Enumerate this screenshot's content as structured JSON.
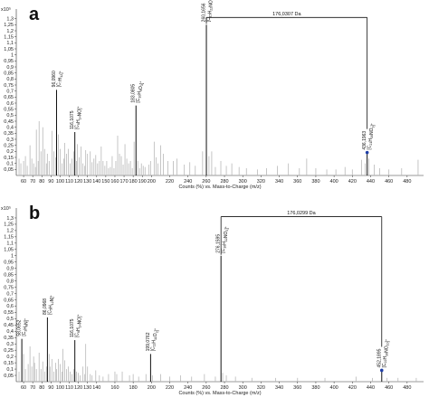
{
  "chart_data": [
    {
      "type": "bar",
      "panel_label": "a",
      "scale_label": "x10⁵",
      "xlabel": "Counts (%) vs. Mass-to-Charge (m/z)",
      "xlim": [
        52,
        498
      ],
      "ylim": [
        0,
        1.35
      ],
      "x_ticks": [
        60,
        70,
        80,
        90,
        100,
        110,
        120,
        130,
        140,
        150,
        160,
        170,
        180,
        190,
        200,
        220,
        240,
        260,
        280,
        300,
        320,
        340,
        360,
        380,
        400,
        420,
        440,
        460,
        480
      ],
      "y_ticks": [
        0.05,
        0.1,
        0.15,
        0.2,
        0.25,
        0.3,
        0.35,
        0.4,
        0.45,
        0.5,
        0.55,
        0.6,
        0.65,
        0.7,
        0.75,
        0.8,
        0.85,
        0.9,
        0.95,
        1,
        1.05,
        1.1,
        1.15,
        1.2,
        1.25,
        1.3
      ],
      "y_tick_labels": [
        "0,05",
        "0,1",
        "0,15",
        "0,2",
        "0,25",
        "0,3",
        "0,35",
        "0,4",
        "0,45",
        "0,5",
        "0,55",
        "0,6",
        "0,65",
        "0,7",
        "0,75",
        "0,8",
        "0,85",
        "0,9",
        "0,95",
        "1",
        "1,05",
        "1,1",
        "1,15",
        "1,2",
        "1,25",
        "1,3"
      ],
      "x_axis_right_extent": 498,
      "labeled_peaks": [
        {
          "mz": 96.096,
          "value": 0.71,
          "label": "96,0960",
          "formula": "[C7H12]+"
        },
        {
          "mz": 116.1075,
          "value": 0.36,
          "label": "116,1075",
          "formula": "[C6H14NO]+"
        },
        {
          "mz": 183.0805,
          "value": 0.58,
          "label": "183,0805",
          "formula": "[C10H9O3]+"
        },
        {
          "mz": 260.1656,
          "value": 1.25,
          "label": "260,1656",
          "formula": "[C15H22NO3]+"
        },
        {
          "mz": 436.1963,
          "value": 0.19,
          "label": "436,1963",
          "formula": "[C21H30NO9]+",
          "marker": true
        }
      ],
      "neutral_loss": {
        "from": 260.1656,
        "to": 436.1963,
        "label": "176,0307 Da",
        "y": 1.31
      },
      "minor_peaks": [
        {
          "x": 55,
          "y": 0.14
        },
        {
          "x": 57,
          "y": 0.1
        },
        {
          "x": 60,
          "y": 0.12
        },
        {
          "x": 62,
          "y": 0.16
        },
        {
          "x": 64,
          "y": 0.08
        },
        {
          "x": 67,
          "y": 0.25
        },
        {
          "x": 69,
          "y": 0.14
        },
        {
          "x": 71,
          "y": 0.1
        },
        {
          "x": 73,
          "y": 0.07
        },
        {
          "x": 74,
          "y": 0.38
        },
        {
          "x": 76,
          "y": 0.12
        },
        {
          "x": 77,
          "y": 0.45
        },
        {
          "x": 79,
          "y": 0.2
        },
        {
          "x": 81,
          "y": 0.4
        },
        {
          "x": 83,
          "y": 0.22
        },
        {
          "x": 85,
          "y": 0.1
        },
        {
          "x": 86,
          "y": 0.18
        },
        {
          "x": 88,
          "y": 0.12
        },
        {
          "x": 91,
          "y": 0.37
        },
        {
          "x": 93,
          "y": 0.2
        },
        {
          "x": 95,
          "y": 0.15
        },
        {
          "x": 98,
          "y": 0.34
        },
        {
          "x": 100,
          "y": 0.22
        },
        {
          "x": 102,
          "y": 0.1
        },
        {
          "x": 104,
          "y": 0.14
        },
        {
          "x": 105,
          "y": 0.27
        },
        {
          "x": 107,
          "y": 0.18
        },
        {
          "x": 109,
          "y": 0.22
        },
        {
          "x": 111,
          "y": 0.1
        },
        {
          "x": 113,
          "y": 0.14
        },
        {
          "x": 115,
          "y": 0.2
        },
        {
          "x": 118,
          "y": 0.12
        },
        {
          "x": 119,
          "y": 0.26
        },
        {
          "x": 121,
          "y": 0.15
        },
        {
          "x": 123,
          "y": 0.24
        },
        {
          "x": 125,
          "y": 0.1
        },
        {
          "x": 127,
          "y": 0.08
        },
        {
          "x": 128,
          "y": 0.21
        },
        {
          "x": 130,
          "y": 0.18
        },
        {
          "x": 133,
          "y": 0.2
        },
        {
          "x": 135,
          "y": 0.11
        },
        {
          "x": 137,
          "y": 0.14
        },
        {
          "x": 139,
          "y": 0.17
        },
        {
          "x": 141,
          "y": 0.1
        },
        {
          "x": 143,
          "y": 0.12
        },
        {
          "x": 145,
          "y": 0.24
        },
        {
          "x": 147,
          "y": 0.12
        },
        {
          "x": 149,
          "y": 0.08
        },
        {
          "x": 151,
          "y": 0.12
        },
        {
          "x": 153,
          "y": 0.06
        },
        {
          "x": 155,
          "y": 0.07
        },
        {
          "x": 157,
          "y": 0.16
        },
        {
          "x": 159,
          "y": 0.06
        },
        {
          "x": 161,
          "y": 0.12
        },
        {
          "x": 163,
          "y": 0.33
        },
        {
          "x": 165,
          "y": 0.18
        },
        {
          "x": 167,
          "y": 0.16
        },
        {
          "x": 169,
          "y": 0.09
        },
        {
          "x": 171,
          "y": 0.26
        },
        {
          "x": 173,
          "y": 0.14
        },
        {
          "x": 175,
          "y": 0.1
        },
        {
          "x": 177,
          "y": 0.12
        },
        {
          "x": 179,
          "y": 0.06
        },
        {
          "x": 181,
          "y": 0.28
        },
        {
          "x": 185,
          "y": 0.12
        },
        {
          "x": 187,
          "y": 0.06
        },
        {
          "x": 189,
          "y": 0.1
        },
        {
          "x": 191,
          "y": 0.08
        },
        {
          "x": 193,
          "y": 0.07
        },
        {
          "x": 197,
          "y": 0.09
        },
        {
          "x": 199,
          "y": 0.12
        },
        {
          "x": 203,
          "y": 0.28
        },
        {
          "x": 205,
          "y": 0.15
        },
        {
          "x": 207,
          "y": 0.1
        },
        {
          "x": 210,
          "y": 0.25
        },
        {
          "x": 213,
          "y": 0.18
        },
        {
          "x": 218,
          "y": 0.12
        },
        {
          "x": 224,
          "y": 0.12
        },
        {
          "x": 228,
          "y": 0.14
        },
        {
          "x": 236,
          "y": 0.09
        },
        {
          "x": 242,
          "y": 0.11
        },
        {
          "x": 248,
          "y": 0.08
        },
        {
          "x": 256,
          "y": 0.2
        },
        {
          "x": 263,
          "y": 0.16
        },
        {
          "x": 266,
          "y": 0.2
        },
        {
          "x": 270,
          "y": 0.07
        },
        {
          "x": 276,
          "y": 0.12
        },
        {
          "x": 282,
          "y": 0.08
        },
        {
          "x": 288,
          "y": 0.1
        },
        {
          "x": 296,
          "y": 0.07
        },
        {
          "x": 304,
          "y": 0.06
        },
        {
          "x": 316,
          "y": 0.05
        },
        {
          "x": 326,
          "y": 0.06
        },
        {
          "x": 338,
          "y": 0.08
        },
        {
          "x": 350,
          "y": 0.1
        },
        {
          "x": 362,
          "y": 0.06
        },
        {
          "x": 370,
          "y": 0.14
        },
        {
          "x": 380,
          "y": 0.06
        },
        {
          "x": 392,
          "y": 0.05
        },
        {
          "x": 402,
          "y": 0.05
        },
        {
          "x": 412,
          "y": 0.07
        },
        {
          "x": 420,
          "y": 0.05
        },
        {
          "x": 430,
          "y": 0.13
        },
        {
          "x": 434,
          "y": 0.1
        },
        {
          "x": 438,
          "y": 0.14
        },
        {
          "x": 444,
          "y": 0.09
        },
        {
          "x": 450,
          "y": 0.06
        },
        {
          "x": 460,
          "y": 0.05
        },
        {
          "x": 474,
          "y": 0.06
        },
        {
          "x": 492,
          "y": 0.13
        }
      ]
    },
    {
      "type": "bar",
      "panel_label": "b",
      "scale_label": "x10⁵",
      "xlabel": "Counts (%) vs. Mass-to-Charge (m/z)",
      "xlim": [
        52,
        498
      ],
      "ylim": [
        0,
        1.35
      ],
      "x_ticks": [
        60,
        70,
        80,
        90,
        100,
        110,
        120,
        130,
        140,
        160,
        180,
        200,
        220,
        240,
        260,
        280,
        300,
        320,
        340,
        360,
        380,
        400,
        420,
        440,
        460,
        480
      ],
      "y_ticks": [
        0.05,
        0.1,
        0.15,
        0.2,
        0.25,
        0.3,
        0.35,
        0.4,
        0.45,
        0.5,
        0.55,
        0.6,
        0.65,
        0.7,
        0.75,
        0.8,
        0.85,
        0.9,
        0.95,
        1,
        1.05,
        1.1,
        1.15,
        1.2,
        1.25,
        1.3
      ],
      "y_tick_labels": [
        "0,05",
        "0,1",
        "0,15",
        "0,2",
        "0,25",
        "0,3",
        "0,35",
        "0,4",
        "0,45",
        "0,5",
        "0,55",
        "0,6",
        "0,65",
        "0,7",
        "0,75",
        "0,8",
        "0,85",
        "0,9",
        "0,95",
        "1",
        "1,05",
        "1,1",
        "1,15",
        "1,2",
        "1,25",
        "1,3"
      ],
      "x_axis_right_extent": 498,
      "labeled_peaks": [
        {
          "mz": 58.0652,
          "value": 0.34,
          "label": "58,0652",
          "formula": "[C3H8N]+"
        },
        {
          "mz": 86.0968,
          "value": 0.51,
          "label": "86,0968",
          "formula": "[C5H12N]+"
        },
        {
          "mz": 116.1075,
          "value": 0.33,
          "label": "116,1075",
          "formula": "[C6H14NO]+"
        },
        {
          "mz": 199.0762,
          "value": 0.22,
          "label": "199,0762",
          "formula": "[C11H11O3]+"
        },
        {
          "mz": 276.1595,
          "value": 1.0,
          "label": "276,1595",
          "formula": "[C16H22NO3]+"
        },
        {
          "mz": 452.1895,
          "value": 0.09,
          "label": "452,1895",
          "formula": "[C22H30NO10]+",
          "marker": true
        }
      ],
      "neutral_loss": {
        "from": 276.1595,
        "to": 452.1895,
        "label": "176,0299 Da",
        "y": 1.31
      },
      "minor_peaks": [
        {
          "x": 55,
          "y": 0.08
        },
        {
          "x": 60,
          "y": 0.22
        },
        {
          "x": 62,
          "y": 0.1
        },
        {
          "x": 65,
          "y": 0.14
        },
        {
          "x": 67,
          "y": 0.28
        },
        {
          "x": 69,
          "y": 0.12
        },
        {
          "x": 71,
          "y": 0.2
        },
        {
          "x": 72,
          "y": 0.15
        },
        {
          "x": 74,
          "y": 0.1
        },
        {
          "x": 77,
          "y": 0.23
        },
        {
          "x": 79,
          "y": 0.1
        },
        {
          "x": 81,
          "y": 0.16
        },
        {
          "x": 83,
          "y": 0.08
        },
        {
          "x": 85,
          "y": 0.12
        },
        {
          "x": 88,
          "y": 0.22
        },
        {
          "x": 89,
          "y": 0.12
        },
        {
          "x": 91,
          "y": 0.18
        },
        {
          "x": 93,
          "y": 0.08
        },
        {
          "x": 95,
          "y": 0.15
        },
        {
          "x": 96,
          "y": 0.1
        },
        {
          "x": 98,
          "y": 0.18
        },
        {
          "x": 100,
          "y": 0.14
        },
        {
          "x": 102,
          "y": 0.08
        },
        {
          "x": 103,
          "y": 0.26
        },
        {
          "x": 105,
          "y": 0.17
        },
        {
          "x": 107,
          "y": 0.1
        },
        {
          "x": 109,
          "y": 0.12
        },
        {
          "x": 111,
          "y": 0.08
        },
        {
          "x": 113,
          "y": 0.06
        },
        {
          "x": 115,
          "y": 0.1
        },
        {
          "x": 118,
          "y": 0.08
        },
        {
          "x": 120,
          "y": 0.07
        },
        {
          "x": 122,
          "y": 0.05
        },
        {
          "x": 125,
          "y": 0.12
        },
        {
          "x": 127,
          "y": 0.06
        },
        {
          "x": 128,
          "y": 0.3
        },
        {
          "x": 130,
          "y": 0.12
        },
        {
          "x": 133,
          "y": 0.06
        },
        {
          "x": 135,
          "y": 0.05
        },
        {
          "x": 139,
          "y": 0.09
        },
        {
          "x": 143,
          "y": 0.05
        },
        {
          "x": 147,
          "y": 0.04
        },
        {
          "x": 153,
          "y": 0.06
        },
        {
          "x": 160,
          "y": 0.08
        },
        {
          "x": 162,
          "y": 0.06
        },
        {
          "x": 168,
          "y": 0.08
        },
        {
          "x": 176,
          "y": 0.05
        },
        {
          "x": 180,
          "y": 0.06
        },
        {
          "x": 186,
          "y": 0.04
        },
        {
          "x": 194,
          "y": 0.06
        },
        {
          "x": 201,
          "y": 0.05
        },
        {
          "x": 210,
          "y": 0.06
        },
        {
          "x": 220,
          "y": 0.04
        },
        {
          "x": 232,
          "y": 0.05
        },
        {
          "x": 244,
          "y": 0.04
        },
        {
          "x": 258,
          "y": 0.06
        },
        {
          "x": 270,
          "y": 0.04
        },
        {
          "x": 278,
          "y": 0.07
        },
        {
          "x": 282,
          "y": 0.05
        },
        {
          "x": 292,
          "y": 0.04
        },
        {
          "x": 310,
          "y": 0.03
        },
        {
          "x": 336,
          "y": 0.03
        },
        {
          "x": 360,
          "y": 0.03
        },
        {
          "x": 390,
          "y": 0.03
        },
        {
          "x": 424,
          "y": 0.04
        },
        {
          "x": 442,
          "y": 0.03
        },
        {
          "x": 458,
          "y": 0.03
        },
        {
          "x": 470,
          "y": 0.03
        },
        {
          "x": 490,
          "y": 0.03
        }
      ]
    }
  ]
}
